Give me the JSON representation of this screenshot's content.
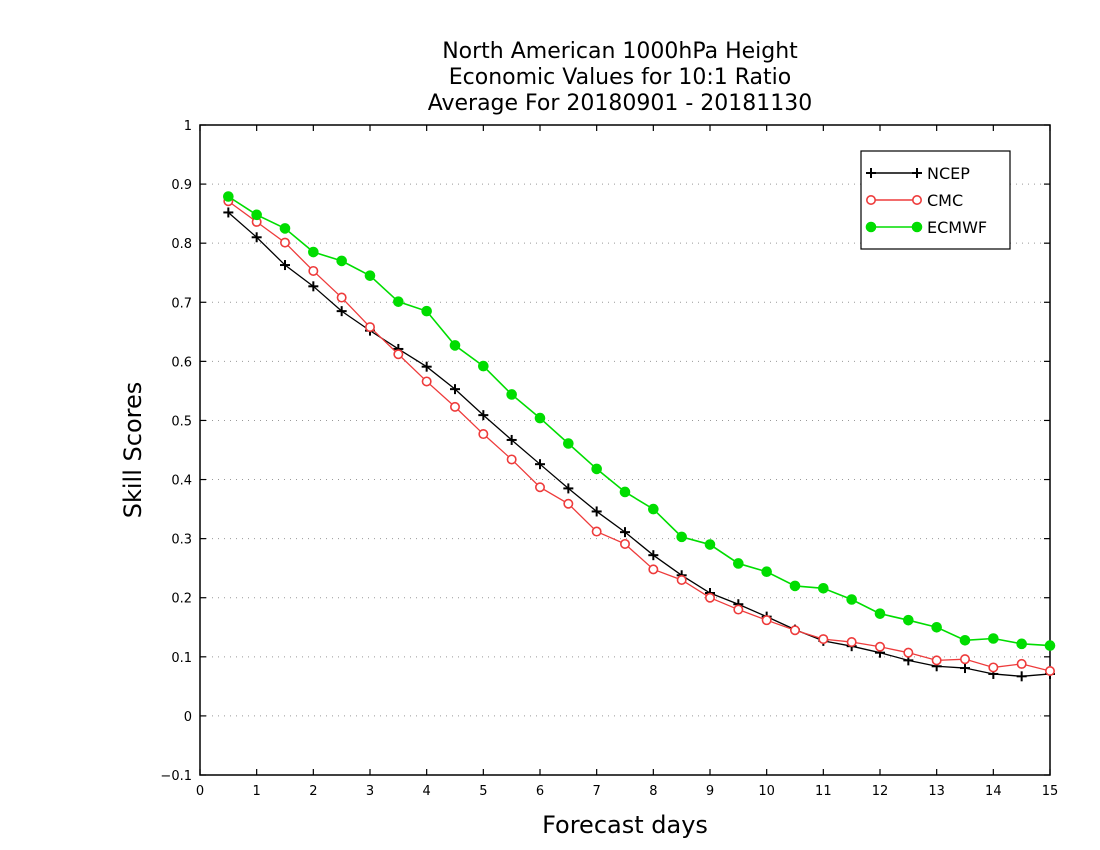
{
  "chart_data": {
    "type": "line",
    "title": [
      "North American 1000hPa Height",
      "Economic Values for 10:1 Ratio",
      "Average For 20180901 - 20181130"
    ],
    "xlabel": "Forecast days",
    "ylabel": "Skill Scores",
    "xlim": [
      0,
      15
    ],
    "ylim": [
      -0.1,
      1
    ],
    "xticks": [
      "0",
      "1",
      "2",
      "3",
      "4",
      "5",
      "6",
      "7",
      "8",
      "9",
      "10",
      "11",
      "12",
      "13",
      "14",
      "15"
    ],
    "yticks": [
      "−0.1",
      "0",
      "0.1",
      "0.2",
      "0.3",
      "0.4",
      "0.5",
      "0.6",
      "0.7",
      "0.8",
      "0.9",
      "1"
    ],
    "grid": true,
    "legend": "top-right",
    "x": [
      0.5,
      1,
      1.5,
      2,
      2.5,
      3,
      3.5,
      4,
      4.5,
      5,
      5.5,
      6,
      6.5,
      7,
      7.5,
      8,
      8.5,
      9,
      9.5,
      10,
      10.5,
      11,
      11.5,
      12,
      12.5,
      13,
      13.5,
      14,
      14.5,
      15
    ],
    "series": [
      {
        "name": "NCEP",
        "color": "#000000",
        "marker": "plus",
        "values": [
          0.852,
          0.81,
          0.763,
          0.727,
          0.685,
          0.652,
          0.621,
          0.591,
          0.553,
          0.509,
          0.467,
          0.426,
          0.385,
          0.346,
          0.311,
          0.272,
          0.238,
          0.208,
          0.189,
          0.168,
          0.146,
          0.127,
          0.118,
          0.107,
          0.094,
          0.084,
          0.081,
          0.071,
          0.067,
          0.071
        ]
      },
      {
        "name": "CMC",
        "color": "#ee3b3b",
        "marker": "open-circle",
        "values": [
          0.871,
          0.836,
          0.801,
          0.753,
          0.708,
          0.658,
          0.612,
          0.566,
          0.523,
          0.477,
          0.434,
          0.387,
          0.359,
          0.312,
          0.291,
          0.248,
          0.23,
          0.2,
          0.18,
          0.162,
          0.145,
          0.13,
          0.125,
          0.117,
          0.107,
          0.094,
          0.096,
          0.082,
          0.088,
          0.076
        ]
      },
      {
        "name": "ECMWF",
        "color": "#00dd00",
        "marker": "filled-circle",
        "values": [
          0.879,
          0.848,
          0.825,
          0.785,
          0.77,
          0.745,
          0.701,
          0.685,
          0.627,
          0.592,
          0.544,
          0.504,
          0.461,
          0.418,
          0.379,
          0.35,
          0.303,
          0.29,
          0.258,
          0.244,
          0.22,
          0.216,
          0.197,
          0.173,
          0.162,
          0.15,
          0.128,
          0.131,
          0.122,
          0.119
        ]
      }
    ]
  }
}
